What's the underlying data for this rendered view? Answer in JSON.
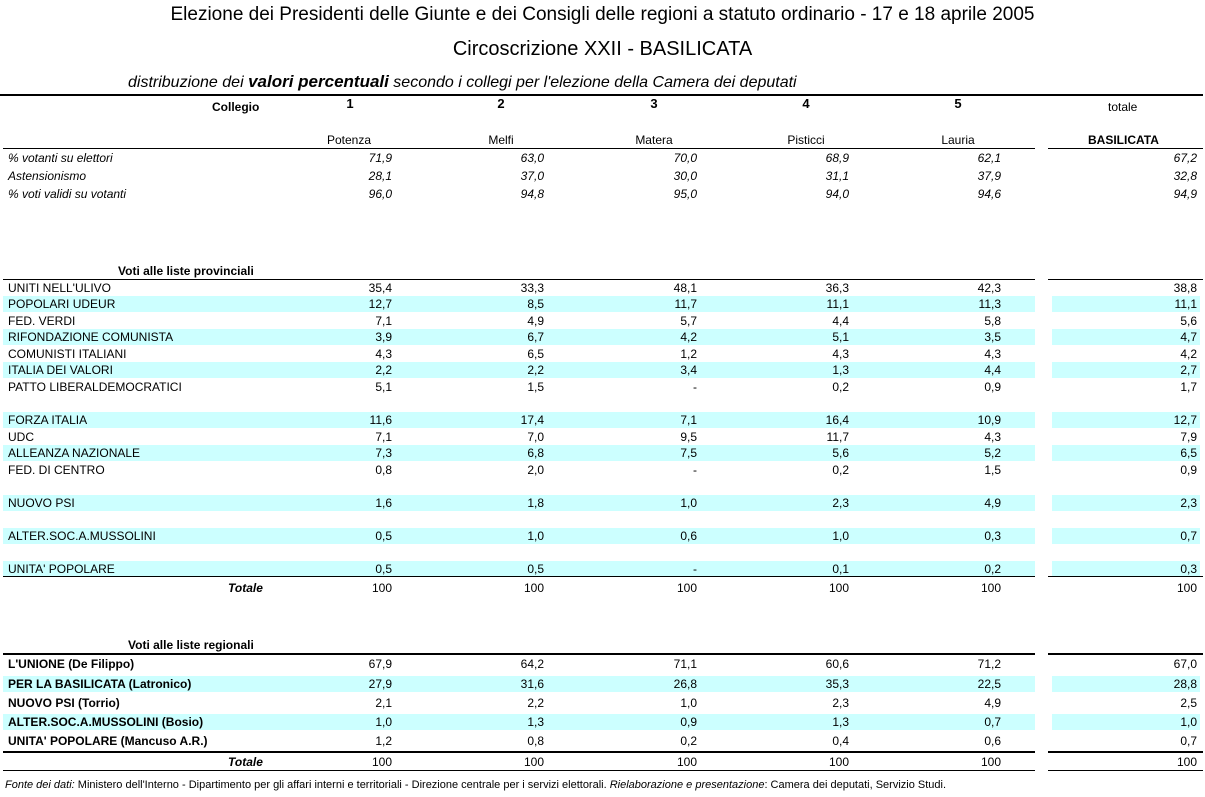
{
  "title": "Elezione dei Presidenti delle Giunte e dei Consigli delle regioni a statuto ordinario - 17 e 18 aprile 2005",
  "circoscrizione": "Circoscrizione XXII - BASILICATA",
  "subtitle": {
    "pre": "distribuzione dei ",
    "emph": "valori percentuali",
    "post": " secondo i collegi per l'elezione della Camera dei deputati"
  },
  "header": {
    "collegio_label": "Collegio",
    "numbers": [
      "1",
      "2",
      "3",
      "4",
      "5"
    ],
    "totale_label": "totale",
    "names": [
      "Potenza",
      "Melfi",
      "Matera",
      "Pisticci",
      "Lauria"
    ],
    "region_name": "BASILICATA"
  },
  "stats": [
    {
      "label": "% votanti su elettori",
      "values": [
        "71,9",
        "63,0",
        "70,0",
        "68,9",
        "62,1"
      ],
      "total": "67,2"
    },
    {
      "label": "Astensionismo",
      "values": [
        "28,1",
        "37,0",
        "30,0",
        "31,1",
        "37,9"
      ],
      "total": "32,8"
    },
    {
      "label": "% voti validi su votanti",
      "values": [
        "96,0",
        "94,8",
        "95,0",
        "94,0",
        "94,6"
      ],
      "total": "94,9"
    }
  ],
  "provincial": {
    "section_label": "Voti alle liste provinciali",
    "rows": [
      {
        "label": "UNITI NELL'ULIVO",
        "values": [
          "35,4",
          "33,3",
          "48,1",
          "36,3",
          "42,3"
        ],
        "total": "38,8"
      },
      {
        "label": "POPOLARI UDEUR",
        "values": [
          "12,7",
          "8,5",
          "11,7",
          "11,1",
          "11,3"
        ],
        "total": "11,1"
      },
      {
        "label": "FED. VERDI",
        "values": [
          "7,1",
          "4,9",
          "5,7",
          "4,4",
          "5,8"
        ],
        "total": "5,6"
      },
      {
        "label": "RIFONDAZIONE COMUNISTA",
        "values": [
          "3,9",
          "6,7",
          "4,2",
          "5,1",
          "3,5"
        ],
        "total": "4,7"
      },
      {
        "label": "COMUNISTI ITALIANI",
        "values": [
          "4,3",
          "6,5",
          "1,2",
          "4,3",
          "4,3"
        ],
        "total": "4,2"
      },
      {
        "label": "ITALIA DEI VALORI",
        "values": [
          "2,2",
          "2,2",
          "3,4",
          "1,3",
          "4,4"
        ],
        "total": "2,7"
      },
      {
        "label": "PATTO LIBERALDEMOCRATICI",
        "values": [
          "5,1",
          "1,5",
          "-",
          "0,2",
          "0,9"
        ],
        "total": "1,7"
      },
      {
        "label": "FORZA ITALIA",
        "values": [
          "11,6",
          "17,4",
          "7,1",
          "16,4",
          "10,9"
        ],
        "total": "12,7"
      },
      {
        "label": "UDC",
        "values": [
          "7,1",
          "7,0",
          "9,5",
          "11,7",
          "4,3"
        ],
        "total": "7,9"
      },
      {
        "label": "ALLEANZA NAZIONALE",
        "values": [
          "7,3",
          "6,8",
          "7,5",
          "5,6",
          "5,2"
        ],
        "total": "6,5"
      },
      {
        "label": "FED.  DI CENTRO",
        "values": [
          "0,8",
          "2,0",
          "-",
          "0,2",
          "1,5"
        ],
        "total": "0,9"
      },
      {
        "label": "NUOVO PSI",
        "values": [
          "1,6",
          "1,8",
          "1,0",
          "2,3",
          "4,9"
        ],
        "total": "2,3"
      },
      {
        "label": "ALTER.SOC.A.MUSSOLINI",
        "values": [
          "0,5",
          "1,0",
          "0,6",
          "1,0",
          "0,3"
        ],
        "total": "0,7"
      },
      {
        "label": "UNITA' POPOLARE",
        "values": [
          "0,5",
          "0,5",
          "-",
          "0,1",
          "0,2"
        ],
        "total": "0,3"
      }
    ],
    "totale_label": "Totale",
    "totale_values": [
      "100",
      "100",
      "100",
      "100",
      "100"
    ],
    "totale_total": "100"
  },
  "regional": {
    "section_label": "Voti alle liste regionali",
    "rows": [
      {
        "label": "L'UNIONE  (De Filippo)",
        "values": [
          "67,9",
          "64,2",
          "71,1",
          "60,6",
          "71,2"
        ],
        "total": "67,0"
      },
      {
        "label": "PER LA BASILICATA  (Latronico)",
        "values": [
          "27,9",
          "31,6",
          "26,8",
          "35,3",
          "22,5"
        ],
        "total": "28,8"
      },
      {
        "label": "NUOVO PSI  (Torrio)",
        "values": [
          "2,1",
          "2,2",
          "1,0",
          "2,3",
          "4,9"
        ],
        "total": "2,5"
      },
      {
        "label": "ALTER.SOC.A.MUSSOLINI (Bosio)",
        "values": [
          "1,0",
          "1,3",
          "0,9",
          "1,3",
          "0,7"
        ],
        "total": "1,0"
      },
      {
        "label": "UNITA' POPOLARE  (Mancuso A.R.)",
        "values": [
          "1,2",
          "0,8",
          "0,2",
          "0,4",
          "0,6"
        ],
        "total": "0,7"
      }
    ],
    "totale_label": "Totale",
    "totale_values": [
      "100",
      "100",
      "100",
      "100",
      "100"
    ],
    "totale_total": "100"
  },
  "footer": {
    "fonte_label": "Fonte dei dati:",
    "fonte_text": " Ministero dell'Interno - Dipartimento per gli affari interni e territoriali - Direzione centrale per i servizi elettorali.  ",
    "rielab_label": "Rielaborazione e presentazione",
    "rielab_text": ": Camera dei deputati, Servizio Studi."
  },
  "colors": {
    "band": "#ccffff"
  }
}
